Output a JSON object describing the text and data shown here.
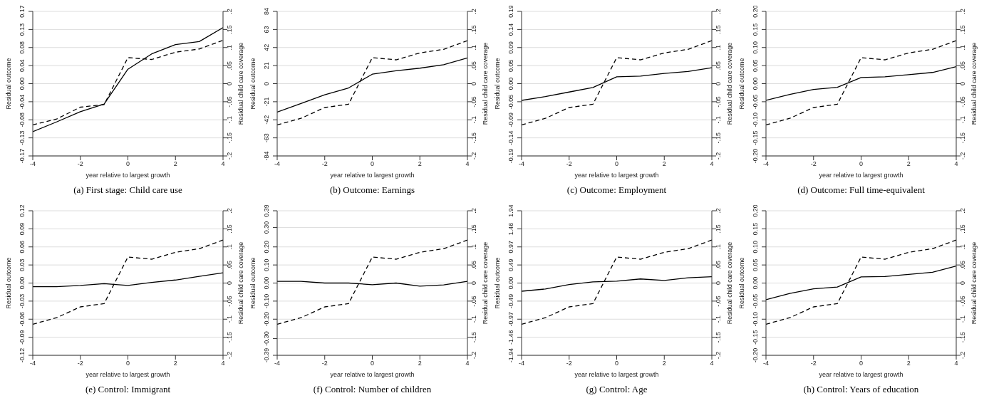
{
  "chart_data": [
    {
      "type": "line",
      "title": "(a) First stage: Child care use",
      "xlabel": "year relative to largest growth",
      "ylabel": "Residual outcome",
      "y2label": "Residual child care coverage",
      "x": [
        -4,
        -3,
        -2,
        -1,
        0,
        1,
        2,
        3,
        4
      ],
      "xlim": [
        -4,
        4
      ],
      "xticks": [
        -4,
        -2,
        0,
        2,
        4
      ],
      "ylim": [
        -0.17,
        0.17
      ],
      "yticks": [
        {
          "value": -0.17,
          "label": "-0.17"
        },
        {
          "value": -0.1275,
          "label": "-0.13"
        },
        {
          "value": -0.085,
          "label": "-0.08"
        },
        {
          "value": -0.0425,
          "label": "-0.04"
        },
        {
          "value": 0,
          "label": "0.00"
        },
        {
          "value": 0.0425,
          "label": "0.04"
        },
        {
          "value": 0.085,
          "label": "0.08"
        },
        {
          "value": 0.1275,
          "label": "0.13"
        },
        {
          "value": 0.17,
          "label": "0.17"
        }
      ],
      "y2lim": [
        -0.2,
        0.2
      ],
      "y2ticks": [
        {
          "value": -0.2,
          "label": "-.2"
        },
        {
          "value": -0.15,
          "label": "-.15"
        },
        {
          "value": -0.1,
          "label": "-.1"
        },
        {
          "value": -0.05,
          "label": "-.05"
        },
        {
          "value": 0,
          "label": "0"
        },
        {
          "value": 0.05,
          "label": ".05"
        },
        {
          "value": 0.1,
          "label": ".1"
        },
        {
          "value": 0.15,
          "label": ".15"
        },
        {
          "value": 0.2,
          "label": ".2"
        }
      ],
      "grid": "y",
      "marker": "none",
      "series": [
        {
          "color": "#000000",
          "line_style": "solid",
          "values": [
            -0.113,
            -0.09,
            -0.066,
            -0.048,
            0.034,
            0.07,
            0.092,
            0.099,
            0.132
          ]
        },
        {
          "color": "#000000",
          "line_style": "dashed",
          "axis": "y2",
          "values": [
            -0.114,
            -0.098,
            -0.065,
            -0.058,
            0.072,
            0.067,
            0.087,
            0.096,
            0.12
          ]
        }
      ]
    },
    {
      "type": "line",
      "title": "(b) Outcome: Earnings",
      "xlabel": "year relative to largest growth",
      "ylabel": "Residual outcome",
      "y2label": "Residual child care coverage",
      "x": [
        -4,
        -3,
        -2,
        -1,
        0,
        1,
        2,
        3,
        4
      ],
      "xlim": [
        -4,
        4
      ],
      "xticks": [
        -4,
        -2,
        0,
        2,
        4
      ],
      "ylim": [
        -84,
        84
      ],
      "yticks": [
        -84,
        -63,
        -42,
        -21,
        0,
        21,
        42,
        63,
        84
      ],
      "y2lim": [
        -0.2,
        0.2
      ],
      "y2ticks": [
        {
          "value": -0.2,
          "label": "-.2"
        },
        {
          "value": -0.15,
          "label": "-.15"
        },
        {
          "value": -0.1,
          "label": "-.1"
        },
        {
          "value": -0.05,
          "label": "-.05"
        },
        {
          "value": 0,
          "label": "0"
        },
        {
          "value": 0.05,
          "label": ".05"
        },
        {
          "value": 0.1,
          "label": ".1"
        },
        {
          "value": 0.15,
          "label": ".15"
        },
        {
          "value": 0.2,
          "label": ".2"
        }
      ],
      "grid": "y",
      "marker": "none",
      "series": [
        {
          "color": "#000000",
          "line_style": "solid",
          "values": [
            -33,
            -23,
            -13,
            -5,
            11,
            15,
            18,
            22,
            30
          ]
        },
        {
          "color": "#000000",
          "line_style": "dashed",
          "axis": "y2",
          "values": [
            -0.114,
            -0.096,
            -0.066,
            -0.057,
            0.072,
            0.066,
            0.085,
            0.095,
            0.119
          ]
        }
      ]
    },
    {
      "type": "line",
      "title": "(c) Outcome: Employment",
      "xlabel": "year relative to largest growth",
      "ylabel": "Residual outcome",
      "y2label": "Residual child care coverage",
      "x": [
        -4,
        -3,
        -2,
        -1,
        0,
        1,
        2,
        3,
        4
      ],
      "xlim": [
        -4,
        4
      ],
      "xticks": [
        -4,
        -2,
        0,
        2,
        4
      ],
      "ylim": [
        -0.19,
        0.19
      ],
      "yticks": [
        {
          "value": -0.19,
          "label": "-0.19"
        },
        {
          "value": -0.1425,
          "label": "-0.14"
        },
        {
          "value": -0.095,
          "label": "-0.09"
        },
        {
          "value": -0.0475,
          "label": "-0.05"
        },
        {
          "value": 0,
          "label": "0.00"
        },
        {
          "value": 0.0475,
          "label": "0.05"
        },
        {
          "value": 0.095,
          "label": "0.09"
        },
        {
          "value": 0.1425,
          "label": "0.14"
        },
        {
          "value": 0.19,
          "label": "0.19"
        }
      ],
      "y2lim": [
        -0.2,
        0.2
      ],
      "y2ticks": [
        {
          "value": -0.2,
          "label": "-.2"
        },
        {
          "value": -0.15,
          "label": "-.15"
        },
        {
          "value": -0.1,
          "label": "-.1"
        },
        {
          "value": -0.05,
          "label": "-.05"
        },
        {
          "value": 0,
          "label": "0"
        },
        {
          "value": 0.05,
          "label": ".05"
        },
        {
          "value": 0.1,
          "label": ".1"
        },
        {
          "value": 0.15,
          "label": ".15"
        },
        {
          "value": 0.2,
          "label": ".2"
        }
      ],
      "grid": "y",
      "marker": "none",
      "series": [
        {
          "color": "#000000",
          "line_style": "solid",
          "values": [
            -0.044,
            -0.034,
            -0.022,
            -0.01,
            0.018,
            0.02,
            0.027,
            0.032,
            0.042
          ]
        },
        {
          "color": "#000000",
          "line_style": "dashed",
          "axis": "y2",
          "values": [
            -0.114,
            -0.096,
            -0.066,
            -0.057,
            0.072,
            0.066,
            0.085,
            0.095,
            0.119
          ]
        }
      ]
    },
    {
      "type": "line",
      "title": "(d) Outcome: Full time-equivalent",
      "xlabel": "year relative to largest growth",
      "ylabel": "Residual outcome",
      "y2label": "Residual child care coverage",
      "x": [
        -4,
        -3,
        -2,
        -1,
        0,
        1,
        2,
        3,
        4
      ],
      "xlim": [
        -4,
        4
      ],
      "xticks": [
        -4,
        -2,
        0,
        2,
        4
      ],
      "ylim": [
        -0.2,
        0.2
      ],
      "yticks": [
        {
          "value": -0.2,
          "label": "-0.20"
        },
        {
          "value": -0.15,
          "label": "-0.15"
        },
        {
          "value": -0.1,
          "label": "-0.10"
        },
        {
          "value": -0.05,
          "label": "-0.05"
        },
        {
          "value": 0,
          "label": "0.00"
        },
        {
          "value": 0.05,
          "label": "0.05"
        },
        {
          "value": 0.1,
          "label": "0.10"
        },
        {
          "value": 0.15,
          "label": "0.15"
        },
        {
          "value": 0.2,
          "label": "0.20"
        }
      ],
      "y2lim": [
        -0.2,
        0.2
      ],
      "y2ticks": [
        {
          "value": -0.2,
          "label": "-.2"
        },
        {
          "value": -0.15,
          "label": "-.15"
        },
        {
          "value": -0.1,
          "label": "-.1"
        },
        {
          "value": -0.05,
          "label": "-.05"
        },
        {
          "value": 0,
          "label": "0"
        },
        {
          "value": 0.05,
          "label": ".05"
        },
        {
          "value": 0.1,
          "label": ".1"
        },
        {
          "value": 0.15,
          "label": ".15"
        },
        {
          "value": 0.2,
          "label": ".2"
        }
      ],
      "grid": "y",
      "marker": "none",
      "series": [
        {
          "color": "#000000",
          "line_style": "solid",
          "values": [
            -0.046,
            -0.03,
            -0.016,
            -0.01,
            0.017,
            0.019,
            0.025,
            0.031,
            0.047
          ]
        },
        {
          "color": "#000000",
          "line_style": "dashed",
          "axis": "y2",
          "values": [
            -0.114,
            -0.096,
            -0.066,
            -0.057,
            0.072,
            0.066,
            0.085,
            0.095,
            0.119
          ]
        }
      ]
    },
    {
      "type": "line",
      "title": "(e) Control: Immigrant",
      "xlabel": "year relative to largest growth",
      "ylabel": "Residual outcome",
      "y2label": "Residual child care coverage",
      "x": [
        -4,
        -3,
        -2,
        -1,
        0,
        1,
        2,
        3,
        4
      ],
      "xlim": [
        -4,
        4
      ],
      "xticks": [
        -4,
        -2,
        0,
        2,
        4
      ],
      "ylim": [
        -0.12,
        0.12
      ],
      "yticks": [
        {
          "value": -0.12,
          "label": "-0.12"
        },
        {
          "value": -0.09,
          "label": "-0.09"
        },
        {
          "value": -0.06,
          "label": "-0.06"
        },
        {
          "value": -0.03,
          "label": "-0.03"
        },
        {
          "value": 0,
          "label": "0.00"
        },
        {
          "value": 0.03,
          "label": "0.03"
        },
        {
          "value": 0.06,
          "label": "0.06"
        },
        {
          "value": 0.09,
          "label": "0.09"
        },
        {
          "value": 0.12,
          "label": "0.12"
        }
      ],
      "y2lim": [
        -0.2,
        0.2
      ],
      "y2ticks": [
        {
          "value": -0.2,
          "label": "-.2"
        },
        {
          "value": -0.15,
          "label": "-.15"
        },
        {
          "value": -0.1,
          "label": "-.1"
        },
        {
          "value": -0.05,
          "label": "-.05"
        },
        {
          "value": 0,
          "label": "0"
        },
        {
          "value": 0.05,
          "label": ".05"
        },
        {
          "value": 0.1,
          "label": ".1"
        },
        {
          "value": 0.15,
          "label": ".15"
        },
        {
          "value": 0.2,
          "label": ".2"
        }
      ],
      "grid": "y",
      "marker": "none",
      "series": [
        {
          "color": "#000000",
          "line_style": "solid",
          "values": [
            -0.006,
            -0.006,
            -0.004,
            -0.001,
            -0.004,
            0.001,
            0.005,
            0.011,
            0.017
          ]
        },
        {
          "color": "#000000",
          "line_style": "dashed",
          "axis": "y2",
          "values": [
            -0.114,
            -0.096,
            -0.066,
            -0.057,
            0.072,
            0.066,
            0.085,
            0.095,
            0.119
          ]
        }
      ]
    },
    {
      "type": "line",
      "title": "(f) Control: Number of children",
      "xlabel": "year relative to largest growth",
      "ylabel": "Residual outcome",
      "y2label": "Residual child care coverage",
      "x": [
        -4,
        -3,
        -2,
        -1,
        0,
        1,
        2,
        3,
        4
      ],
      "xlim": [
        -4,
        4
      ],
      "xticks": [
        -4,
        -2,
        0,
        2,
        4
      ],
      "ylim": [
        -0.39,
        0.39
      ],
      "yticks": [
        {
          "value": -0.39,
          "label": "-0.39"
        },
        {
          "value": -0.3,
          "label": "-0.30"
        },
        {
          "value": -0.195,
          "label": "-0.20"
        },
        {
          "value": -0.0975,
          "label": "-0.10"
        },
        {
          "value": 0,
          "label": "0.00"
        },
        {
          "value": 0.0975,
          "label": "0.10"
        },
        {
          "value": 0.195,
          "label": "0.20"
        },
        {
          "value": 0.3,
          "label": "0.30"
        },
        {
          "value": 0.39,
          "label": "0.39"
        }
      ],
      "y2lim": [
        -0.2,
        0.2
      ],
      "y2ticks": [
        {
          "value": -0.2,
          "label": "-.2"
        },
        {
          "value": -0.15,
          "label": "-.15"
        },
        {
          "value": -0.1,
          "label": "-.1"
        },
        {
          "value": -0.05,
          "label": "-.05"
        },
        {
          "value": 0,
          "label": "0"
        },
        {
          "value": 0.05,
          "label": ".05"
        },
        {
          "value": 0.1,
          "label": ".1"
        },
        {
          "value": 0.15,
          "label": ".15"
        },
        {
          "value": 0.2,
          "label": ".2"
        }
      ],
      "grid": "y",
      "marker": "none",
      "series": [
        {
          "color": "#000000",
          "line_style": "solid",
          "values": [
            0.009,
            0.009,
            0,
            0,
            -0.009,
            0,
            -0.017,
            -0.01,
            0.009
          ]
        },
        {
          "color": "#000000",
          "line_style": "dashed",
          "axis": "y2",
          "values": [
            -0.114,
            -0.096,
            -0.066,
            -0.057,
            0.072,
            0.066,
            0.085,
            0.095,
            0.119
          ]
        }
      ]
    },
    {
      "type": "line",
      "title": "(g) Control: Age",
      "xlabel": "year relative to largest growth",
      "ylabel": "Residual outcome",
      "y2label": "Residual child care coverage",
      "x": [
        -4,
        -3,
        -2,
        -1,
        0,
        1,
        2,
        3,
        4
      ],
      "xlim": [
        -4,
        4
      ],
      "xticks": [
        -4,
        -2,
        0,
        2,
        4
      ],
      "ylim": [
        -1.94,
        1.94
      ],
      "yticks": [
        {
          "value": -1.94,
          "label": "-1.94"
        },
        {
          "value": -1.455,
          "label": "-1.46"
        },
        {
          "value": -0.97,
          "label": "-0.97"
        },
        {
          "value": -0.485,
          "label": "-0.49"
        },
        {
          "value": 0,
          "label": "0.00"
        },
        {
          "value": 0.485,
          "label": "0.49"
        },
        {
          "value": 0.97,
          "label": "0.97"
        },
        {
          "value": 1.455,
          "label": "1.46"
        },
        {
          "value": 1.94,
          "label": "1.94"
        }
      ],
      "y2lim": [
        -0.2,
        0.2
      ],
      "y2ticks": [
        {
          "value": -0.2,
          "label": "-.2"
        },
        {
          "value": -0.15,
          "label": "-.15"
        },
        {
          "value": -0.1,
          "label": "-.1"
        },
        {
          "value": -0.05,
          "label": "-.05"
        },
        {
          "value": 0,
          "label": "0"
        },
        {
          "value": 0.05,
          "label": ".05"
        },
        {
          "value": 0.1,
          "label": ".1"
        },
        {
          "value": 0.15,
          "label": ".15"
        },
        {
          "value": 0.2,
          "label": ".2"
        }
      ],
      "grid": "y",
      "marker": "none",
      "series": [
        {
          "color": "#000000",
          "line_style": "solid",
          "values": [
            -0.22,
            -0.16,
            -0.04,
            0.03,
            0.05,
            0.11,
            0.07,
            0.14,
            0.17
          ]
        },
        {
          "color": "#000000",
          "line_style": "dashed",
          "axis": "y2",
          "values": [
            -0.114,
            -0.096,
            -0.066,
            -0.057,
            0.072,
            0.066,
            0.085,
            0.095,
            0.119
          ]
        }
      ]
    },
    {
      "type": "line",
      "title": "(h) Control: Years of education",
      "xlabel": "year relative to largest growth",
      "ylabel": "Residual outcome",
      "y2label": "Residual child care coverage",
      "x": [
        -4,
        -3,
        -2,
        -1,
        0,
        1,
        2,
        3,
        4
      ],
      "xlim": [
        -4,
        4
      ],
      "xticks": [
        -4,
        -2,
        0,
        2,
        4
      ],
      "ylim": [
        -0.2,
        0.2
      ],
      "yticks": [
        {
          "value": -0.2,
          "label": "-0.20"
        },
        {
          "value": -0.15,
          "label": "-0.15"
        },
        {
          "value": -0.1,
          "label": "-0.10"
        },
        {
          "value": -0.05,
          "label": "-0.05"
        },
        {
          "value": 0,
          "label": "0.00"
        },
        {
          "value": 0.05,
          "label": "0.05"
        },
        {
          "value": 0.1,
          "label": "0.10"
        },
        {
          "value": 0.15,
          "label": "0.15"
        },
        {
          "value": 0.2,
          "label": "0.20"
        }
      ],
      "y2lim": [
        -0.2,
        0.2
      ],
      "y2ticks": [
        {
          "value": -0.2,
          "label": "-.2"
        },
        {
          "value": -0.15,
          "label": "-.15"
        },
        {
          "value": -0.1,
          "label": "-.1"
        },
        {
          "value": -0.05,
          "label": "-.05"
        },
        {
          "value": 0,
          "label": "0"
        },
        {
          "value": 0.05,
          "label": ".05"
        },
        {
          "value": 0.1,
          "label": ".1"
        },
        {
          "value": 0.15,
          "label": ".15"
        },
        {
          "value": 0.2,
          "label": ".2"
        }
      ],
      "grid": "y",
      "marker": "none",
      "series": [
        {
          "color": "#000000",
          "line_style": "solid",
          "values": [
            -0.046,
            -0.029,
            -0.016,
            -0.011,
            0.017,
            0.018,
            0.024,
            0.03,
            0.047
          ]
        },
        {
          "color": "#000000",
          "line_style": "dashed",
          "axis": "y2",
          "values": [
            -0.114,
            -0.096,
            -0.066,
            -0.057,
            0.072,
            0.066,
            0.085,
            0.095,
            0.119
          ]
        }
      ]
    }
  ]
}
